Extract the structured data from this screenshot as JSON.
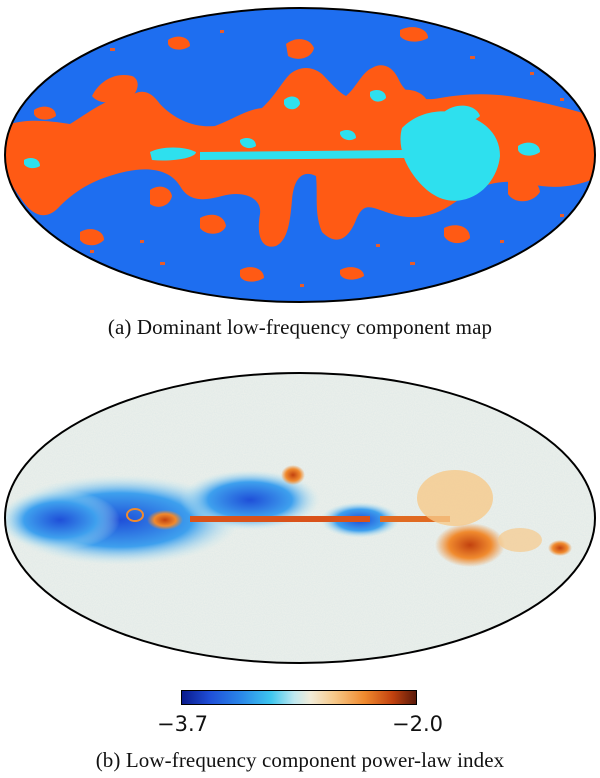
{
  "panel_a": {
    "caption": "(a) Dominant low-frequency component map",
    "colors": {
      "background": "#1e6ef0",
      "component_orange": "#ff5a14",
      "component_cyan": "#2ee0ee",
      "outline": "#000000"
    }
  },
  "panel_b": {
    "caption": "(b) Low-frequency component power-law index",
    "colorbar": {
      "min_label": "−3.7",
      "max_label": "−2.0"
    },
    "colors": {
      "background": "#eef1ea",
      "low": "#1f4fd8",
      "mid": "#f2ecd8",
      "high": "#c2420f"
    }
  }
}
